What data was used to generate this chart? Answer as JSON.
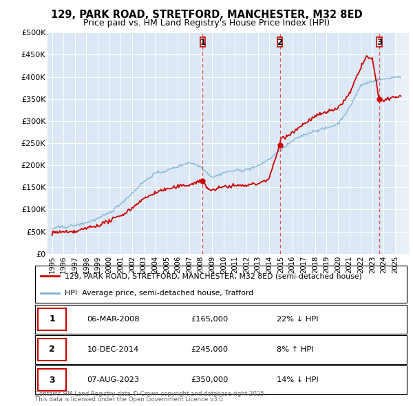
{
  "title1": "129, PARK ROAD, STRETFORD, MANCHESTER, M32 8ED",
  "title2": "Price paid vs. HM Land Registry's House Price Index (HPI)",
  "ylim": [
    0,
    500000
  ],
  "yticks": [
    0,
    50000,
    100000,
    150000,
    200000,
    250000,
    300000,
    350000,
    400000,
    450000,
    500000
  ],
  "ytick_labels": [
    "£0",
    "£50K",
    "£100K",
    "£150K",
    "£200K",
    "£250K",
    "£300K",
    "£350K",
    "£400K",
    "£450K",
    "£500K"
  ],
  "xlim_start": 1994.6,
  "xlim_end": 2026.2,
  "transaction_dates": [
    2008.17,
    2014.92,
    2023.6
  ],
  "transaction_labels": [
    "1",
    "2",
    "3"
  ],
  "transaction_date_strs": [
    "06-MAR-2008",
    "10-DEC-2014",
    "07-AUG-2023"
  ],
  "transaction_price_strs": [
    "£165,000",
    "£245,000",
    "£350,000"
  ],
  "transaction_hpi_strs": [
    "22% ↓ HPI",
    "8% ↑ HPI",
    "14% ↓ HPI"
  ],
  "legend_line1": "129, PARK ROAD, STRETFORD, MANCHESTER, M32 8ED (semi-detached house)",
  "legend_line2": "HPI: Average price, semi-detached house, Trafford",
  "footer1": "Contains HM Land Registry data © Crown copyright and database right 2025.",
  "footer2": "This data is licensed under the Open Government Licence v3.0.",
  "red_line_color": "#cc0000",
  "blue_line_color": "#7ab0d4",
  "grid_color": "#ffffff",
  "vline_color": "#dd3333",
  "marker_box_color": "#cc0000",
  "plot_bg": "#dce8f5",
  "shade_color": "#c5d8ee",
  "future_shade": "#dce8f5"
}
